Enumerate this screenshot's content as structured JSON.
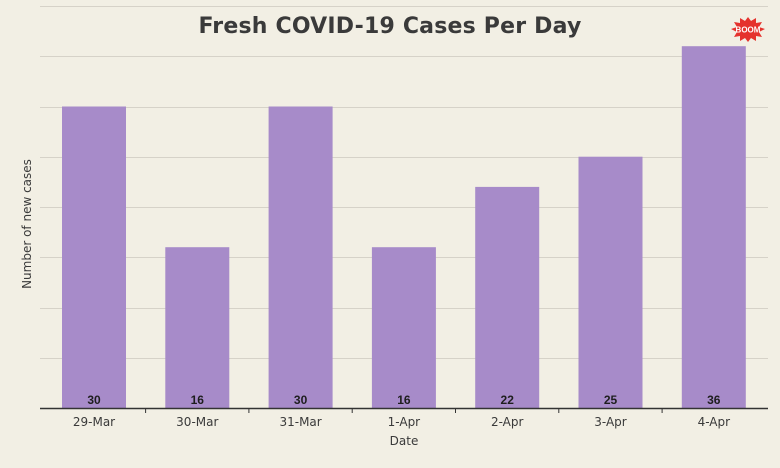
{
  "chart_data": {
    "type": "bar",
    "title": "Fresh COVID-19 Cases Per Day",
    "xlabel": "Date",
    "ylabel": "Number of new cases",
    "categories": [
      "29-Mar",
      "30-Mar",
      "31-Mar",
      "1-Apr",
      "2-Apr",
      "3-Apr",
      "4-Apr"
    ],
    "values": [
      30,
      16,
      30,
      16,
      22,
      25,
      36
    ],
    "ylim": [
      0,
      40
    ],
    "grid": true,
    "bar_color": "#a78bc9",
    "data_labels": true
  },
  "logo": {
    "text": "BOOM",
    "color": "#e5322d"
  }
}
